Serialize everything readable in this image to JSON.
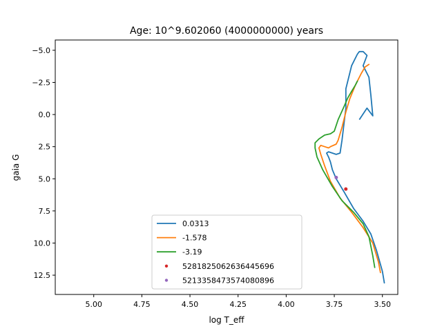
{
  "chart_data": {
    "type": "line",
    "title": "Age: 10^9.602060 (4000000000) years",
    "xlabel": "log T_eff",
    "ylabel": "gaia G",
    "xlim": [
      5.2,
      3.42
    ],
    "ylim": [
      14.0,
      -5.8
    ],
    "x_ticks": [
      5.0,
      4.75,
      4.5,
      4.25,
      4.0,
      3.75,
      3.5
    ],
    "x_tick_labels": [
      "5.00",
      "4.75",
      "4.50",
      "4.25",
      "4.00",
      "3.75",
      "3.50"
    ],
    "y_ticks": [
      -5.0,
      -2.5,
      0.0,
      2.5,
      5.0,
      7.5,
      10.0,
      12.5
    ],
    "y_tick_labels": [
      "−5.0",
      "−2.5",
      "0.0",
      "2.5",
      "5.0",
      "7.5",
      "10.0",
      "12.5"
    ],
    "legend_position": "lower-center",
    "series": [
      {
        "name": "0.0313",
        "color": "#1f77b4",
        "kind": "line",
        "x": [
          3.49,
          3.5,
          3.53,
          3.56,
          3.6,
          3.65,
          3.7,
          3.74,
          3.76,
          3.77,
          3.78,
          3.79,
          3.78,
          3.76,
          3.74,
          3.72,
          3.71,
          3.69,
          3.69,
          3.66,
          3.63,
          3.62,
          3.6,
          3.58,
          3.6,
          3.57,
          3.56,
          3.55
        ],
        "y": [
          13.1,
          12.2,
          10.6,
          9.3,
          8.3,
          7.3,
          6.0,
          5.0,
          4.3,
          3.7,
          3.3,
          3.0,
          2.9,
          3.0,
          3.1,
          3.0,
          2.0,
          -0.5,
          -2.0,
          -3.8,
          -4.7,
          -4.9,
          -4.9,
          -4.6,
          -3.8,
          -2.9,
          -1.5,
          0.1
        ],
        "tail": [
          {
            "x": 3.55,
            "y": 0.1
          },
          {
            "x": 3.58,
            "y": -0.5
          },
          {
            "x": 3.62,
            "y": 0.4
          }
        ]
      },
      {
        "name": "-1.578",
        "color": "#ff7f0e",
        "kind": "line",
        "x": [
          3.51,
          3.52,
          3.55,
          3.6,
          3.66,
          3.72,
          3.77,
          3.8,
          3.82,
          3.83,
          3.82,
          3.8,
          3.78,
          3.77,
          3.74,
          3.73,
          3.71,
          3.69,
          3.67,
          3.64,
          3.61,
          3.59,
          3.58,
          3.57
        ],
        "y": [
          12.3,
          11.5,
          10.0,
          8.8,
          7.6,
          6.5,
          5.2,
          4.0,
          3.1,
          2.6,
          2.4,
          2.5,
          2.6,
          2.5,
          2.3,
          2.0,
          1.0,
          -0.2,
          -1.2,
          -2.3,
          -3.2,
          -3.7,
          -3.8,
          -3.9
        ]
      },
      {
        "name": "-3.19",
        "color": "#2ca02c",
        "kind": "line",
        "x": [
          3.54,
          3.55,
          3.57,
          3.6,
          3.65,
          3.71,
          3.76,
          3.81,
          3.84,
          3.85,
          3.85,
          3.83,
          3.8,
          3.77,
          3.75,
          3.73,
          3.7,
          3.68,
          3.66,
          3.64,
          3.63
        ],
        "y": [
          11.9,
          11.0,
          9.5,
          8.5,
          7.6,
          6.7,
          5.6,
          4.3,
          3.3,
          2.6,
          2.2,
          1.9,
          1.6,
          1.5,
          1.3,
          0.4,
          -0.6,
          -1.3,
          -1.8,
          -2.3,
          -2.6
        ]
      }
    ],
    "points": [
      {
        "name": "5281825062636445696",
        "color": "#d62728",
        "x": 3.69,
        "y": 5.8
      },
      {
        "name": "5213358473574080896",
        "color": "#9467bd",
        "x": 3.74,
        "y": 4.9
      }
    ]
  }
}
